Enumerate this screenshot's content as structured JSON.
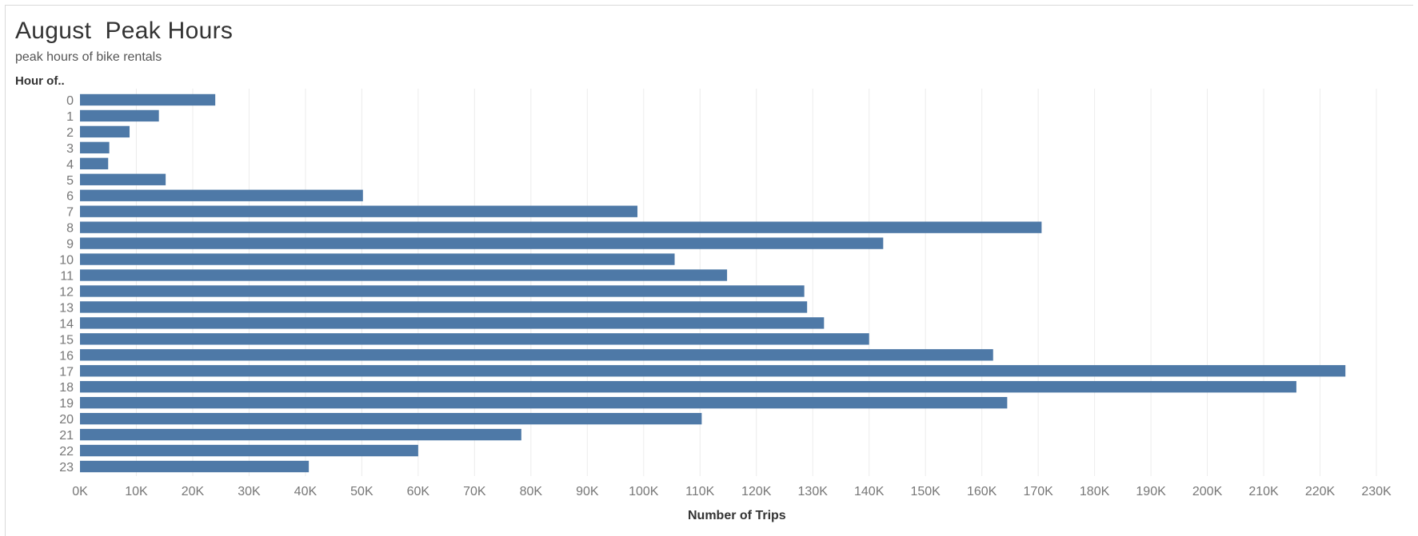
{
  "title": "August  Peak Hours",
  "subtitle": "peak hours of bike rentals",
  "colors": {
    "bar": "#4e79a7",
    "grid": "#ececec",
    "tick_text": "#777777",
    "text": "#333333"
  },
  "chart_data": {
    "type": "bar",
    "orientation": "horizontal",
    "ylabel": "Hour of..",
    "xlabel": "Number of Trips",
    "categories": [
      "0",
      "1",
      "2",
      "3",
      "4",
      "5",
      "6",
      "7",
      "8",
      "9",
      "10",
      "11",
      "12",
      "13",
      "14",
      "15",
      "16",
      "17",
      "18",
      "19",
      "20",
      "21",
      "22",
      "23"
    ],
    "values": [
      24000,
      14000,
      8800,
      5200,
      5000,
      15200,
      50200,
      98900,
      170600,
      142500,
      105500,
      114800,
      128500,
      129000,
      132000,
      140000,
      162000,
      224500,
      215800,
      164500,
      110300,
      78300,
      60000,
      40600
    ],
    "xlim": [
      0,
      230000
    ],
    "xticks": [
      "0K",
      "10K",
      "20K",
      "30K",
      "40K",
      "50K",
      "60K",
      "70K",
      "80K",
      "90K",
      "100K",
      "110K",
      "120K",
      "130K",
      "140K",
      "150K",
      "160K",
      "170K",
      "180K",
      "190K",
      "200K",
      "210K",
      "220K",
      "230K"
    ],
    "grid": true,
    "legend": "none"
  }
}
